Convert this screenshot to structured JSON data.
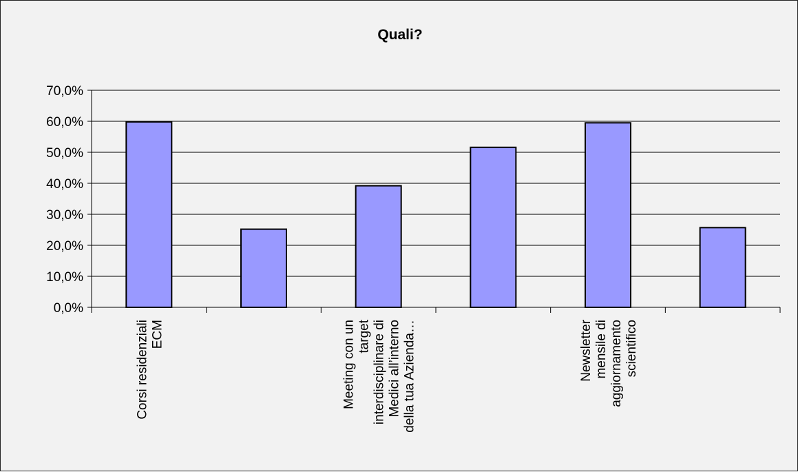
{
  "chart_data": {
    "type": "bar",
    "title": "Quali?",
    "xlabel": "",
    "ylabel": "",
    "ylim": [
      0,
      0.7
    ],
    "y_ticks": [
      "0,0%",
      "10,0%",
      "20,0%",
      "30,0%",
      "40,0%",
      "50,0%",
      "60,0%",
      "70,0%"
    ],
    "grid": true,
    "legend": "none",
    "categories": [
      [
        "Corsi residenziali",
        "ECM"
      ],
      [],
      [
        "Meeting con un",
        "target",
        "interdisciplinare di",
        "Medici all’interno",
        "della tua Azienda…"
      ],
      [],
      [
        "Newsletter",
        "mensile di",
        "aggiornamento",
        "scientifico"
      ],
      []
    ],
    "values": [
      0.598,
      0.252,
      0.392,
      0.516,
      0.595,
      0.257
    ],
    "colors": {
      "bar_fill": "#9999ff",
      "bar_stroke": "#000000",
      "grid": "#000000",
      "background": "#f2f2f2"
    }
  }
}
